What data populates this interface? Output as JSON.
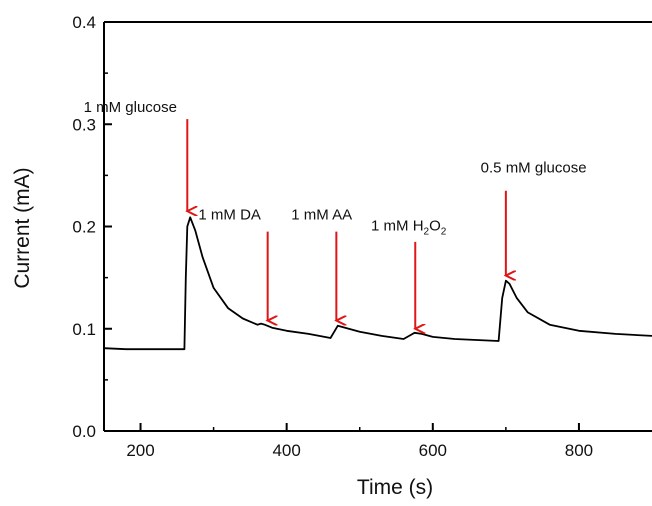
{
  "chart_data": {
    "type": "line",
    "title": "",
    "xlabel": "Time (s)",
    "ylabel": "Current (mA)",
    "xlim": [
      150,
      900
    ],
    "ylim": [
      0.0,
      0.4
    ],
    "x_ticks": [
      200,
      400,
      600,
      800
    ],
    "y_ticks": [
      0.0,
      0.1,
      0.2,
      0.3,
      0.4
    ],
    "grid": false,
    "line_color": "#000000",
    "arrow_color": "#e01515",
    "series": [
      {
        "x": [
          150,
          180,
          210,
          240,
          260,
          262,
          264,
          268,
          275,
          285,
          300,
          320,
          340,
          360,
          365,
          370,
          380,
          400,
          430,
          460,
          465,
          470,
          480,
          500,
          530,
          560,
          570,
          575,
          585,
          600,
          630,
          660,
          690,
          695,
          700,
          705,
          715,
          730,
          760,
          800,
          850,
          900
        ],
        "y": [
          0.081,
          0.08,
          0.08,
          0.08,
          0.08,
          0.15,
          0.2,
          0.209,
          0.196,
          0.17,
          0.14,
          0.12,
          0.11,
          0.104,
          0.105,
          0.104,
          0.101,
          0.098,
          0.095,
          0.091,
          0.097,
          0.103,
          0.101,
          0.097,
          0.093,
          0.09,
          0.094,
          0.096,
          0.095,
          0.092,
          0.09,
          0.089,
          0.088,
          0.13,
          0.147,
          0.144,
          0.13,
          0.116,
          0.104,
          0.098,
          0.095,
          0.093
        ]
      }
    ],
    "annotations": [
      {
        "text": "1 mM glucose",
        "sub": "",
        "tail": "",
        "arrow_x": 264,
        "arrow_y_top": 0.305,
        "arrow_y_tip": 0.215,
        "label_x": 186,
        "label_y": 0.312
      },
      {
        "text": "1 mM DA",
        "sub": "",
        "tail": "",
        "arrow_x": 374,
        "arrow_y_top": 0.195,
        "arrow_y_tip": 0.108,
        "label_x": 322,
        "label_y": 0.207
      },
      {
        "text": "1 mM AA",
        "sub": "",
        "tail": "",
        "arrow_x": 468,
        "arrow_y_top": 0.195,
        "arrow_y_tip": 0.108,
        "label_x": 448,
        "label_y": 0.207
      },
      {
        "text": "1 mM H",
        "sub": "2",
        "tail": "O",
        "sub2": "2",
        "arrow_x": 576,
        "arrow_y_top": 0.185,
        "arrow_y_tip": 0.1,
        "label_x": 567,
        "label_y": 0.196
      },
      {
        "text": "0.5 mM glucose",
        "sub": "",
        "tail": "",
        "arrow_x": 700,
        "arrow_y_top": 0.235,
        "arrow_y_tip": 0.152,
        "label_x": 738,
        "label_y": 0.253
      }
    ]
  }
}
